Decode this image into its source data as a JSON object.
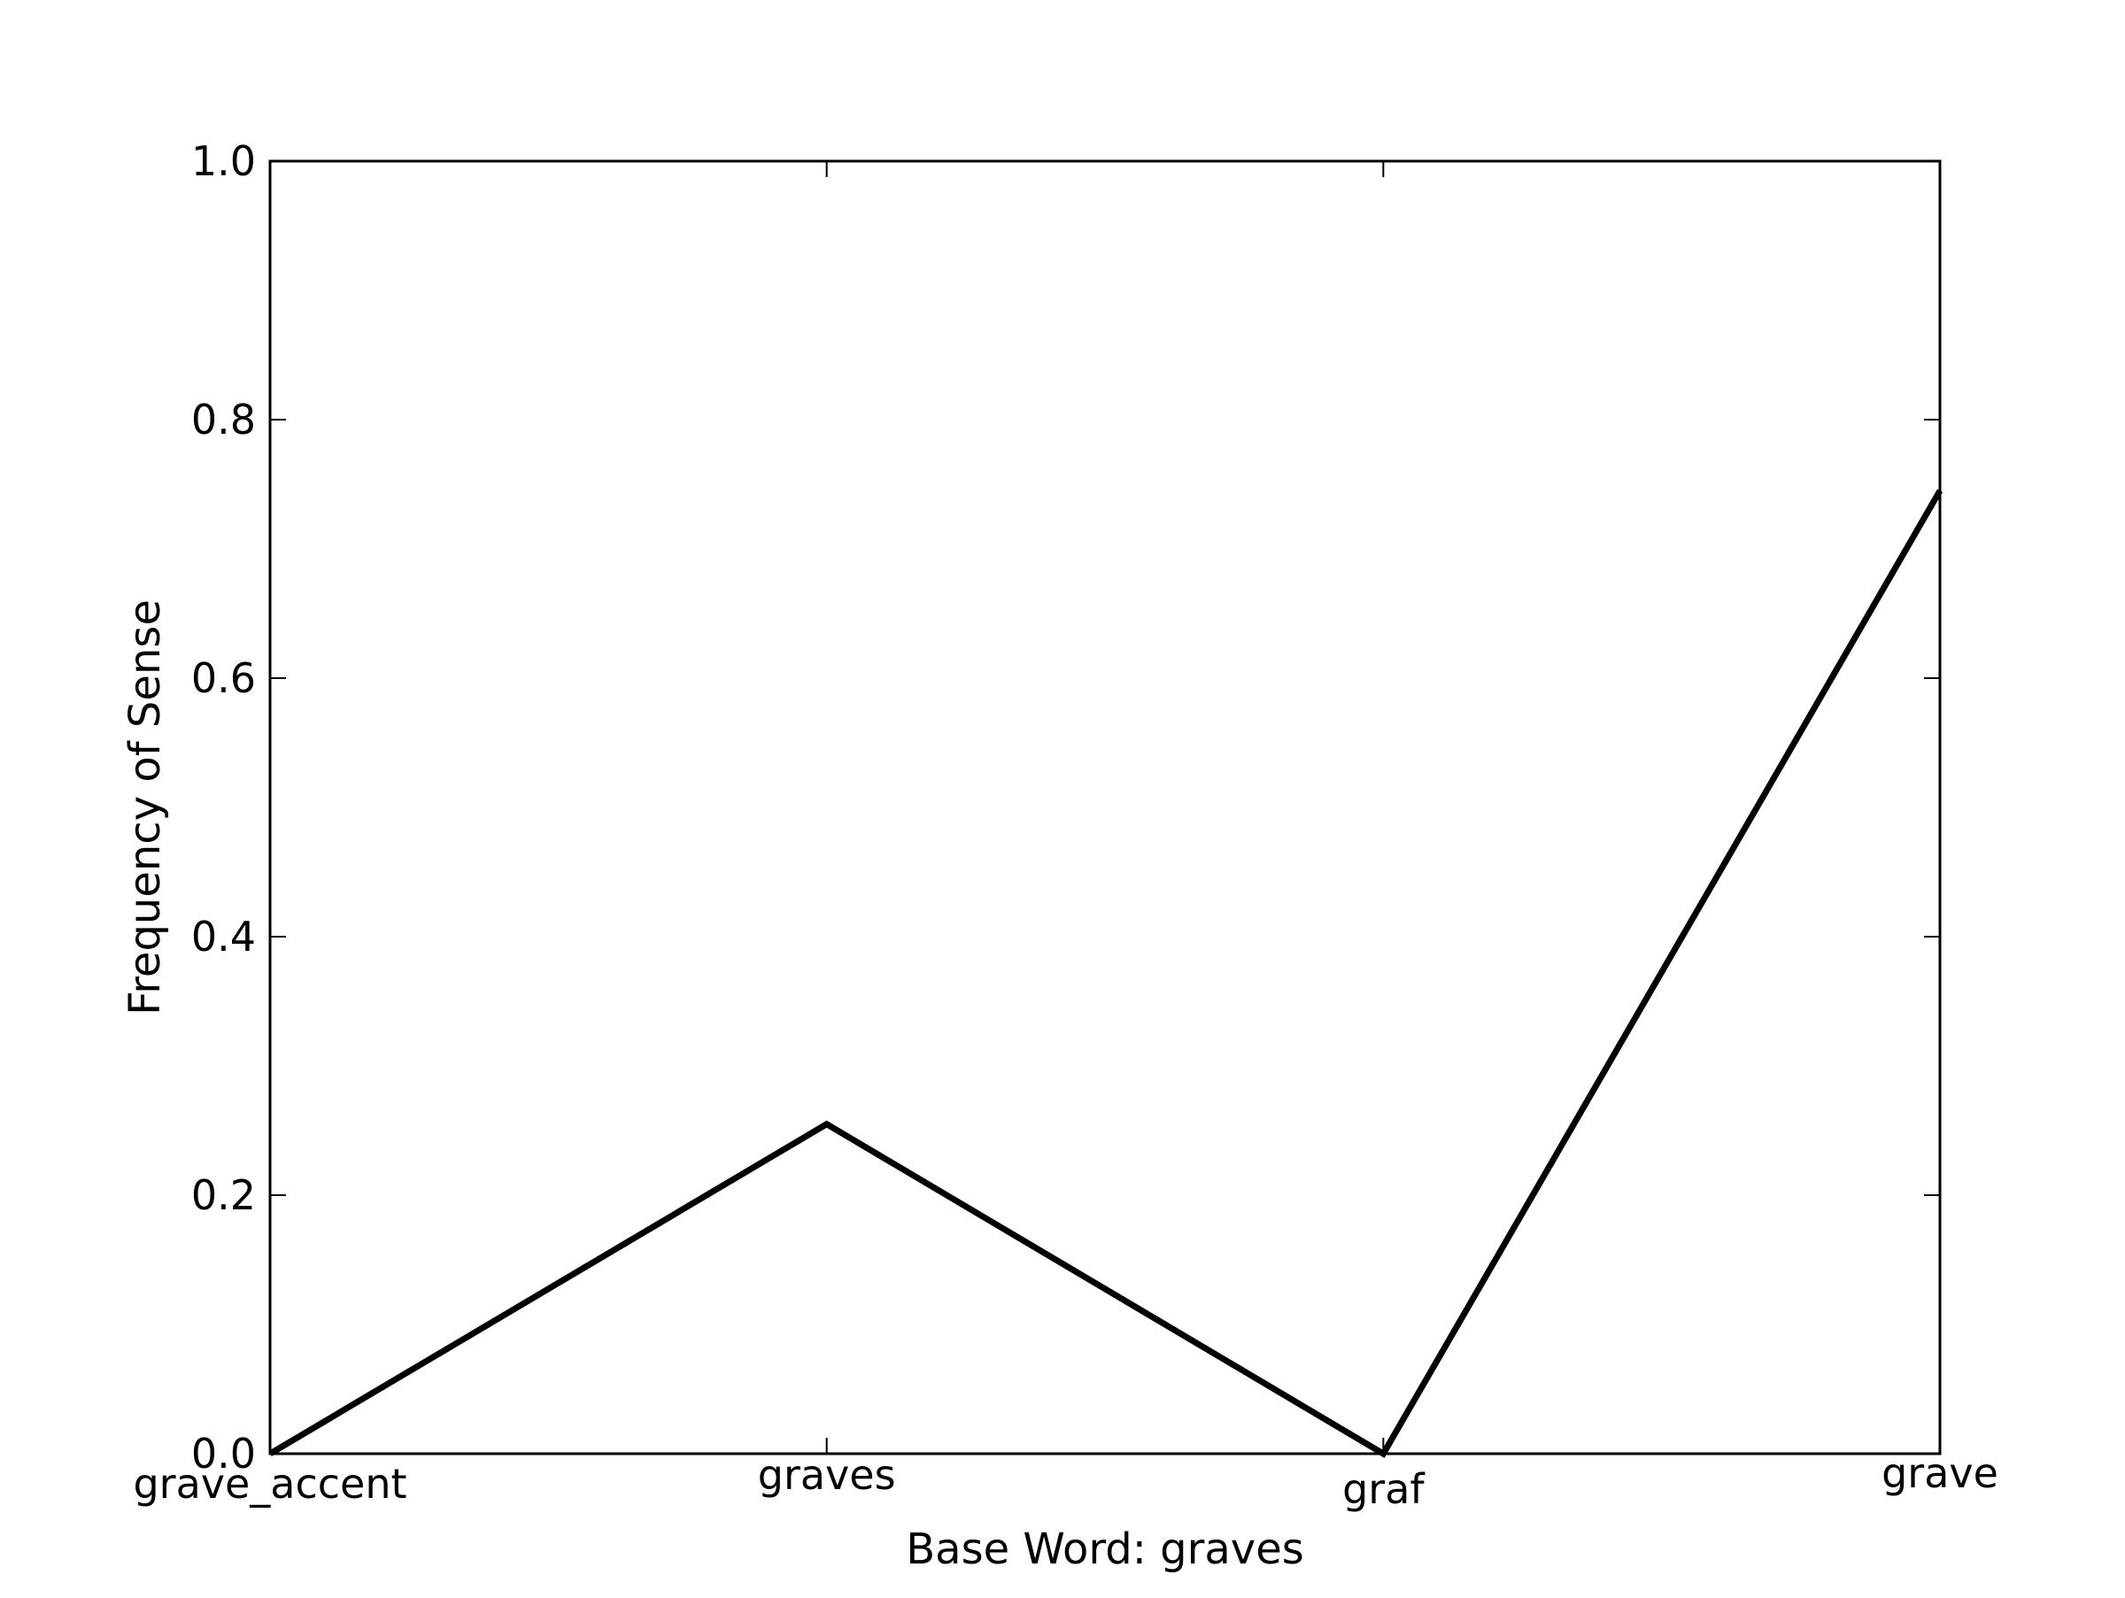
{
  "chart_data": {
    "type": "line",
    "title": "",
    "xlabel": "Base Word: graves",
    "ylabel": "Frequency of Sense",
    "categories": [
      "grave_accent",
      "graves",
      "graf",
      "grave"
    ],
    "series": [
      {
        "values": [
          0.0,
          0.255,
          0.0,
          0.745
        ],
        "color": "#000000"
      }
    ],
    "ylim": [
      0.0,
      1.0
    ],
    "yticks": [
      "0.0",
      "0.2",
      "0.4",
      "0.6",
      "0.8",
      "1.0"
    ],
    "grid": false,
    "legend": "none"
  }
}
